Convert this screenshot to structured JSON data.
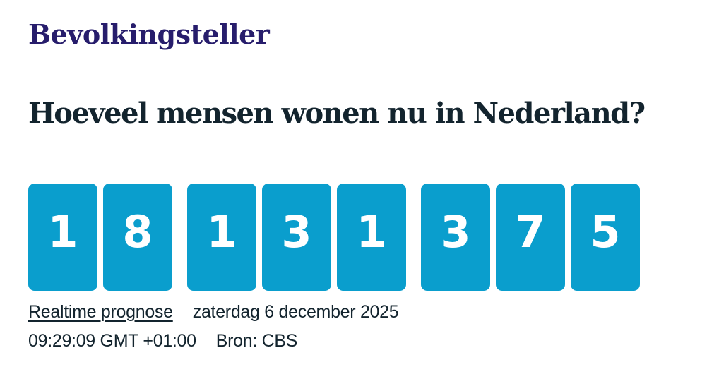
{
  "header": {
    "title": "Bevolkingsteller",
    "question": "Hoeveel mensen wonen nu in Nederland?"
  },
  "counter": {
    "value": "18131375",
    "digit_groups": [
      [
        "1",
        "8"
      ],
      [
        "1",
        "3",
        "1"
      ],
      [
        "3",
        "7",
        "5"
      ]
    ]
  },
  "footer": {
    "link_label": "Realtime prognose",
    "date": "zaterdag 6 december 2025",
    "time": "09:29:09 GMT +01:00",
    "source": "Bron: CBS"
  },
  "colors": {
    "digit_card_blue": "#0a9ecd",
    "title_purple": "#271d6c",
    "text_dark": "#13242e"
  }
}
